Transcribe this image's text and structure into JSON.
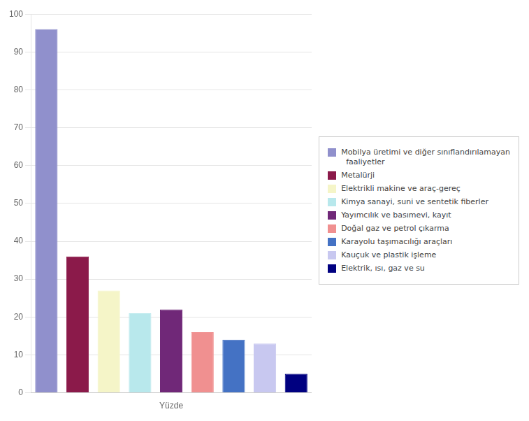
{
  "chart_data": {
    "type": "bar",
    "xlabel": "Yüzde",
    "categories": [
      "Mobilya üretimi ve diğer sınıflandırılamayan\n  faaliyetler",
      "Metalürji",
      "Elektrikli makine ve araç-gereç",
      "Kimya sanayi, suni ve sentetik fiberler",
      "Yayımcılık ve basımevi, kayıt",
      "Doğal gaz ve petrol çıkarma",
      "Karayolu taşımacılığı araçları",
      "Kauçuk ve plastik işleme",
      "Elektrik, ısı, gaz ve su"
    ],
    "values": [
      96,
      36,
      27,
      21,
      22,
      16,
      14,
      13,
      5
    ],
    "colors": [
      "#9090cc",
      "#8b1a4a",
      "#f5f5c8",
      "#b8e8ec",
      "#702878",
      "#f09090",
      "#4472c4",
      "#c8c8f0",
      "#000080"
    ],
    "ylim": [
      0,
      100
    ],
    "yticks": [
      0,
      10,
      20,
      30,
      40,
      50,
      60,
      70,
      80,
      90,
      100
    ],
    "grid": true,
    "legend": "right",
    "tick_labels": "y"
  }
}
